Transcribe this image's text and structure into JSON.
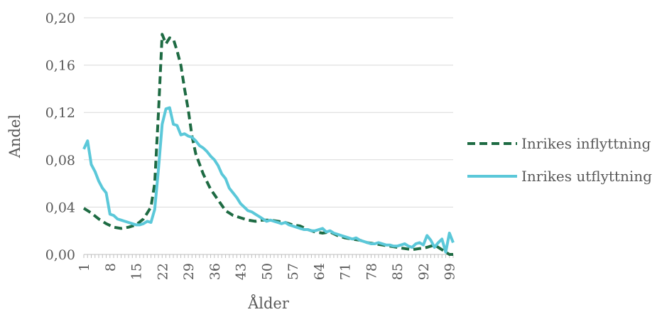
{
  "chart_data": {
    "type": "line",
    "title": "",
    "xlabel": "Ålder",
    "ylabel": "Andel",
    "ylim": [
      0,
      0.2
    ],
    "y_ticks": [
      "0,00",
      "0,04",
      "0,08",
      "0,12",
      "0,16",
      "0,20"
    ],
    "x_tick_labels": [
      "1",
      "8",
      "15",
      "22",
      "29",
      "36",
      "43",
      "50",
      "57",
      "64",
      "71",
      "78",
      "85",
      "92",
      "99"
    ],
    "x_range": [
      1,
      100
    ],
    "grid": "horizontal",
    "legend_position": "right",
    "series": [
      {
        "name": "Inrikes inflyttning",
        "color": "#1e6b43",
        "style": "dashed",
        "points": [
          [
            1,
            0.039
          ],
          [
            3,
            0.035
          ],
          [
            5,
            0.03
          ],
          [
            7,
            0.026
          ],
          [
            9,
            0.023
          ],
          [
            11,
            0.022
          ],
          [
            13,
            0.023
          ],
          [
            15,
            0.025
          ],
          [
            17,
            0.03
          ],
          [
            19,
            0.04
          ],
          [
            20,
            0.06
          ],
          [
            21,
            0.12
          ],
          [
            22,
            0.186
          ],
          [
            23,
            0.178
          ],
          [
            24,
            0.183
          ],
          [
            25,
            0.182
          ],
          [
            26,
            0.172
          ],
          [
            27,
            0.16
          ],
          [
            28,
            0.14
          ],
          [
            29,
            0.122
          ],
          [
            30,
            0.1
          ],
          [
            31,
            0.085
          ],
          [
            33,
            0.068
          ],
          [
            35,
            0.055
          ],
          [
            37,
            0.046
          ],
          [
            39,
            0.037
          ],
          [
            41,
            0.033
          ],
          [
            43,
            0.031
          ],
          [
            45,
            0.029
          ],
          [
            47,
            0.028
          ],
          [
            49,
            0.029
          ],
          [
            51,
            0.029
          ],
          [
            53,
            0.028
          ],
          [
            55,
            0.027
          ],
          [
            57,
            0.025
          ],
          [
            59,
            0.024
          ],
          [
            61,
            0.021
          ],
          [
            63,
            0.019
          ],
          [
            65,
            0.018
          ],
          [
            67,
            0.019
          ],
          [
            69,
            0.016
          ],
          [
            71,
            0.014
          ],
          [
            73,
            0.013
          ],
          [
            75,
            0.012
          ],
          [
            77,
            0.01
          ],
          [
            79,
            0.009
          ],
          [
            81,
            0.008
          ],
          [
            83,
            0.007
          ],
          [
            85,
            0.006
          ],
          [
            87,
            0.005
          ],
          [
            89,
            0.004
          ],
          [
            91,
            0.005
          ],
          [
            93,
            0.006
          ],
          [
            95,
            0.008
          ],
          [
            97,
            0.004
          ],
          [
            99,
            0.0
          ],
          [
            100,
            0.0
          ]
        ]
      },
      {
        "name": "Inrikes utflyttning",
        "color": "#5bc8d9",
        "style": "solid",
        "points": [
          [
            1,
            0.089
          ],
          [
            2,
            0.096
          ],
          [
            3,
            0.076
          ],
          [
            4,
            0.07
          ],
          [
            5,
            0.062
          ],
          [
            6,
            0.056
          ],
          [
            7,
            0.052
          ],
          [
            8,
            0.034
          ],
          [
            9,
            0.033
          ],
          [
            10,
            0.03
          ],
          [
            11,
            0.029
          ],
          [
            12,
            0.028
          ],
          [
            13,
            0.027
          ],
          [
            14,
            0.026
          ],
          [
            15,
            0.025
          ],
          [
            16,
            0.025
          ],
          [
            17,
            0.026
          ],
          [
            18,
            0.028
          ],
          [
            19,
            0.027
          ],
          [
            20,
            0.038
          ],
          [
            21,
            0.072
          ],
          [
            22,
            0.11
          ],
          [
            23,
            0.123
          ],
          [
            24,
            0.124
          ],
          [
            25,
            0.11
          ],
          [
            26,
            0.109
          ],
          [
            27,
            0.101
          ],
          [
            28,
            0.102
          ],
          [
            29,
            0.1
          ],
          [
            30,
            0.099
          ],
          [
            31,
            0.096
          ],
          [
            32,
            0.092
          ],
          [
            33,
            0.09
          ],
          [
            34,
            0.087
          ],
          [
            35,
            0.083
          ],
          [
            36,
            0.08
          ],
          [
            37,
            0.075
          ],
          [
            38,
            0.068
          ],
          [
            39,
            0.064
          ],
          [
            40,
            0.056
          ],
          [
            41,
            0.052
          ],
          [
            42,
            0.048
          ],
          [
            43,
            0.043
          ],
          [
            44,
            0.04
          ],
          [
            45,
            0.037
          ],
          [
            46,
            0.036
          ],
          [
            47,
            0.034
          ],
          [
            48,
            0.032
          ],
          [
            49,
            0.03
          ],
          [
            50,
            0.028
          ],
          [
            51,
            0.029
          ],
          [
            52,
            0.028
          ],
          [
            53,
            0.027
          ],
          [
            54,
            0.026
          ],
          [
            55,
            0.027
          ],
          [
            56,
            0.025
          ],
          [
            57,
            0.024
          ],
          [
            58,
            0.023
          ],
          [
            59,
            0.022
          ],
          [
            60,
            0.021
          ],
          [
            61,
            0.021
          ],
          [
            62,
            0.02
          ],
          [
            63,
            0.02
          ],
          [
            64,
            0.021
          ],
          [
            65,
            0.022
          ],
          [
            66,
            0.019
          ],
          [
            67,
            0.02
          ],
          [
            68,
            0.018
          ],
          [
            69,
            0.017
          ],
          [
            70,
            0.016
          ],
          [
            71,
            0.015
          ],
          [
            72,
            0.014
          ],
          [
            73,
            0.013
          ],
          [
            74,
            0.014
          ],
          [
            75,
            0.012
          ],
          [
            76,
            0.011
          ],
          [
            77,
            0.01
          ],
          [
            78,
            0.009
          ],
          [
            79,
            0.009
          ],
          [
            80,
            0.01
          ],
          [
            81,
            0.009
          ],
          [
            82,
            0.008
          ],
          [
            83,
            0.008
          ],
          [
            84,
            0.007
          ],
          [
            85,
            0.007
          ],
          [
            86,
            0.008
          ],
          [
            87,
            0.009
          ],
          [
            88,
            0.007
          ],
          [
            89,
            0.006
          ],
          [
            90,
            0.009
          ],
          [
            91,
            0.01
          ],
          [
            92,
            0.008
          ],
          [
            93,
            0.016
          ],
          [
            94,
            0.012
          ],
          [
            95,
            0.006
          ],
          [
            96,
            0.01
          ],
          [
            97,
            0.013
          ],
          [
            98,
            0.002
          ],
          [
            99,
            0.018
          ],
          [
            100,
            0.01
          ]
        ]
      }
    ]
  }
}
